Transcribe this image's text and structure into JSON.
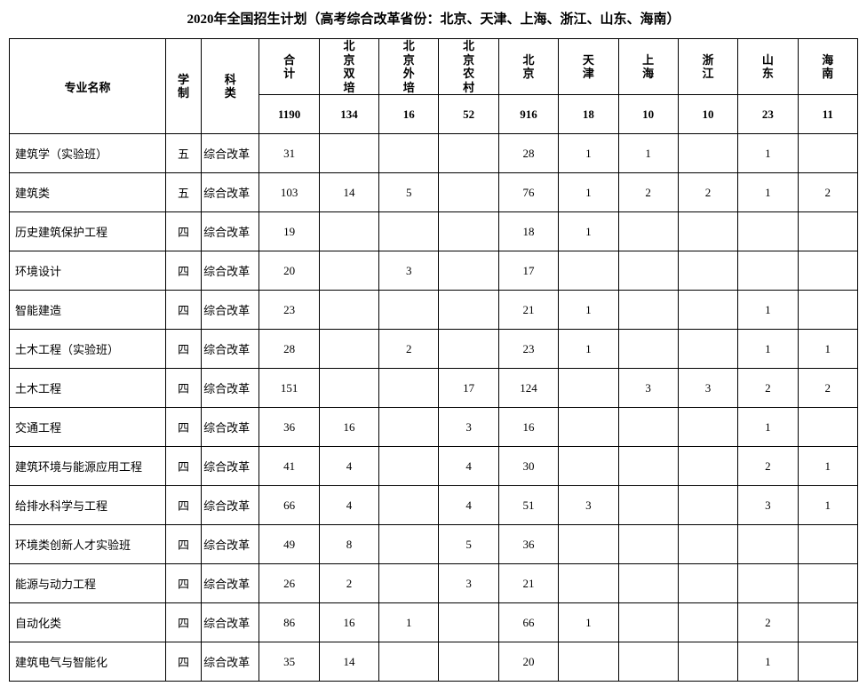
{
  "title": "2020年全国招生计划（高考综合改革省份：北京、天津、上海、浙江、山东、海南）",
  "headers": {
    "major": "专业名称",
    "duration": "学\n制",
    "category": "科\n类",
    "cols": [
      "合\n计",
      "北\n京\n双\n培",
      "北\n京\n外\n培",
      "北\n京\n农\n村",
      "北\n京",
      "天\n津",
      "上\n海",
      "浙\n江",
      "山\n东",
      "海\n南"
    ]
  },
  "totals": [
    "1190",
    "134",
    "16",
    "52",
    "916",
    "18",
    "10",
    "10",
    "23",
    "11"
  ],
  "rows": [
    {
      "major": "建筑学（实验班）",
      "dur": "五",
      "cat": "综合改革",
      "v": [
        "31",
        "",
        "",
        "",
        "28",
        "1",
        "1",
        "",
        "1",
        ""
      ]
    },
    {
      "major": "建筑类",
      "dur": "五",
      "cat": "综合改革",
      "v": [
        "103",
        "14",
        "5",
        "",
        "76",
        "1",
        "2",
        "2",
        "1",
        "2"
      ]
    },
    {
      "major": "历史建筑保护工程",
      "dur": "四",
      "cat": "综合改革",
      "v": [
        "19",
        "",
        "",
        "",
        "18",
        "1",
        "",
        "",
        "",
        ""
      ]
    },
    {
      "major": "环境设计",
      "dur": "四",
      "cat": "综合改革",
      "v": [
        "20",
        "",
        "3",
        "",
        "17",
        "",
        "",
        "",
        "",
        ""
      ]
    },
    {
      "major": "智能建造",
      "dur": "四",
      "cat": "综合改革",
      "v": [
        "23",
        "",
        "",
        "",
        "21",
        "1",
        "",
        "",
        "1",
        ""
      ]
    },
    {
      "major": "土木工程（实验班）",
      "dur": "四",
      "cat": "综合改革",
      "v": [
        "28",
        "",
        "2",
        "",
        "23",
        "1",
        "",
        "",
        "1",
        "1"
      ]
    },
    {
      "major": "土木工程",
      "dur": "四",
      "cat": "综合改革",
      "v": [
        "151",
        "",
        "",
        "17",
        "124",
        "",
        "3",
        "3",
        "2",
        "2"
      ]
    },
    {
      "major": "交通工程",
      "dur": "四",
      "cat": "综合改革",
      "v": [
        "36",
        "16",
        "",
        "3",
        "16",
        "",
        "",
        "",
        "1",
        ""
      ]
    },
    {
      "major": "建筑环境与能源应用工程",
      "dur": "四",
      "cat": "综合改革",
      "v": [
        "41",
        "4",
        "",
        "4",
        "30",
        "",
        "",
        "",
        "2",
        "1"
      ]
    },
    {
      "major": "给排水科学与工程",
      "dur": "四",
      "cat": "综合改革",
      "v": [
        "66",
        "4",
        "",
        "4",
        "51",
        "3",
        "",
        "",
        "3",
        "1"
      ]
    },
    {
      "major": "环境类创新人才实验班",
      "dur": "四",
      "cat": "综合改革",
      "v": [
        "49",
        "8",
        "",
        "5",
        "36",
        "",
        "",
        "",
        "",
        ""
      ]
    },
    {
      "major": "能源与动力工程",
      "dur": "四",
      "cat": "综合改革",
      "v": [
        "26",
        "2",
        "",
        "3",
        "21",
        "",
        "",
        "",
        "",
        ""
      ]
    },
    {
      "major": "自动化类",
      "dur": "四",
      "cat": "综合改革",
      "v": [
        "86",
        "16",
        "1",
        "",
        "66",
        "1",
        "",
        "",
        "2",
        ""
      ]
    },
    {
      "major": "建筑电气与智能化",
      "dur": "四",
      "cat": "综合改革",
      "v": [
        "35",
        "14",
        "",
        "",
        "20",
        "",
        "",
        "",
        "1",
        ""
      ]
    }
  ]
}
